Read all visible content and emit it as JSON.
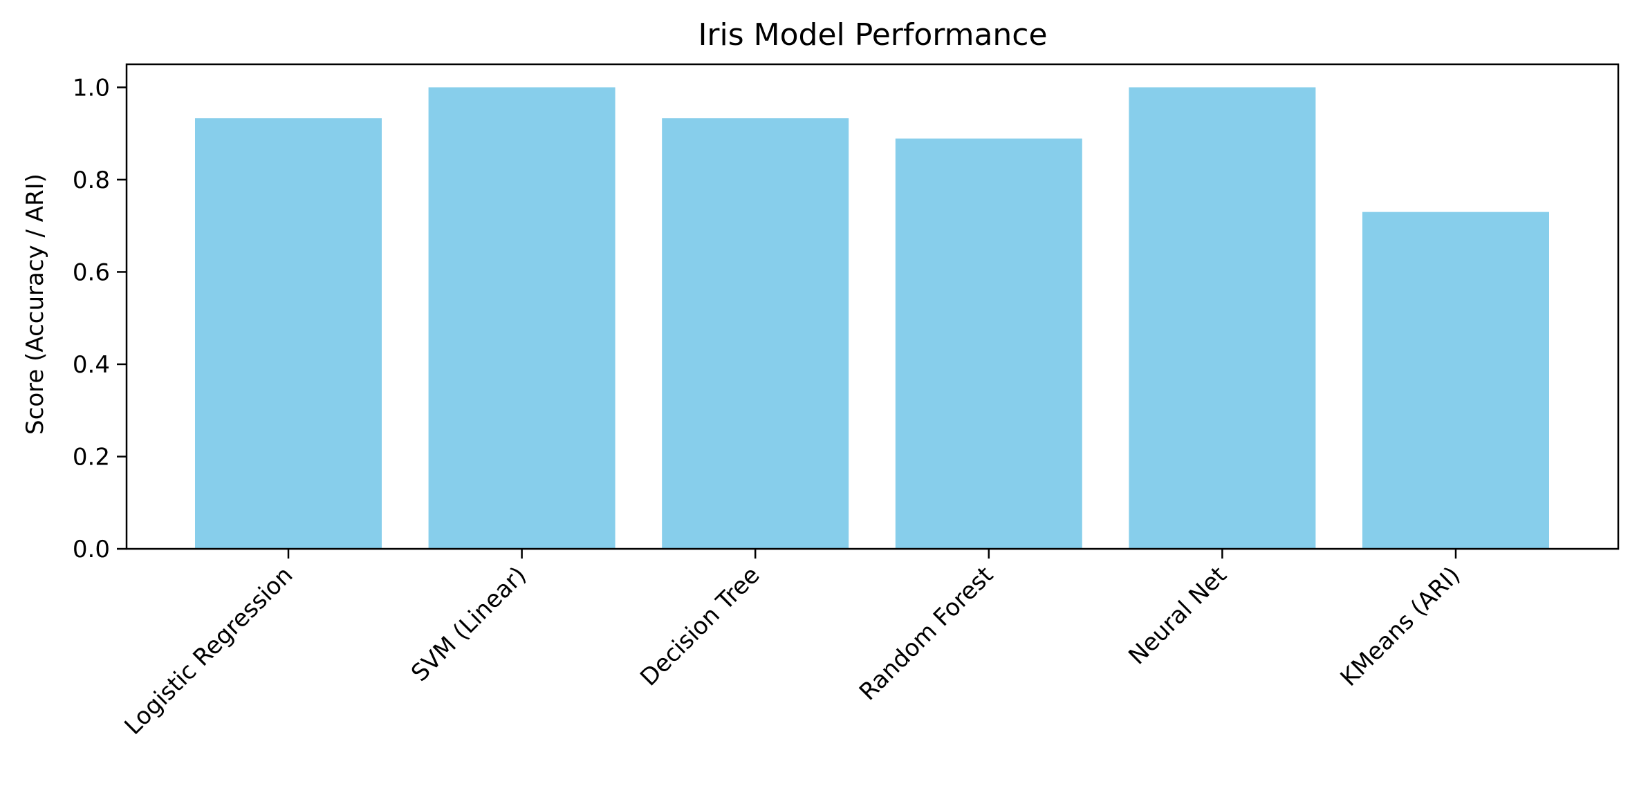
{
  "chart_data": {
    "type": "bar",
    "title": "Iris Model Performance",
    "xlabel": "",
    "ylabel": "Score (Accuracy / ARI)",
    "categories": [
      "Logistic Regression",
      "SVM (Linear)",
      "Decision Tree",
      "Random Forest",
      "Neural Net",
      "KMeans (ARI)"
    ],
    "values": [
      0.933,
      1.0,
      0.933,
      0.889,
      1.0,
      0.73
    ],
    "ylim": [
      0,
      1.05
    ],
    "yticks": [
      "0.0",
      "0.2",
      "0.4",
      "0.6",
      "0.8",
      "1.0"
    ],
    "grid": false,
    "bar_color": "#87CEEB"
  }
}
